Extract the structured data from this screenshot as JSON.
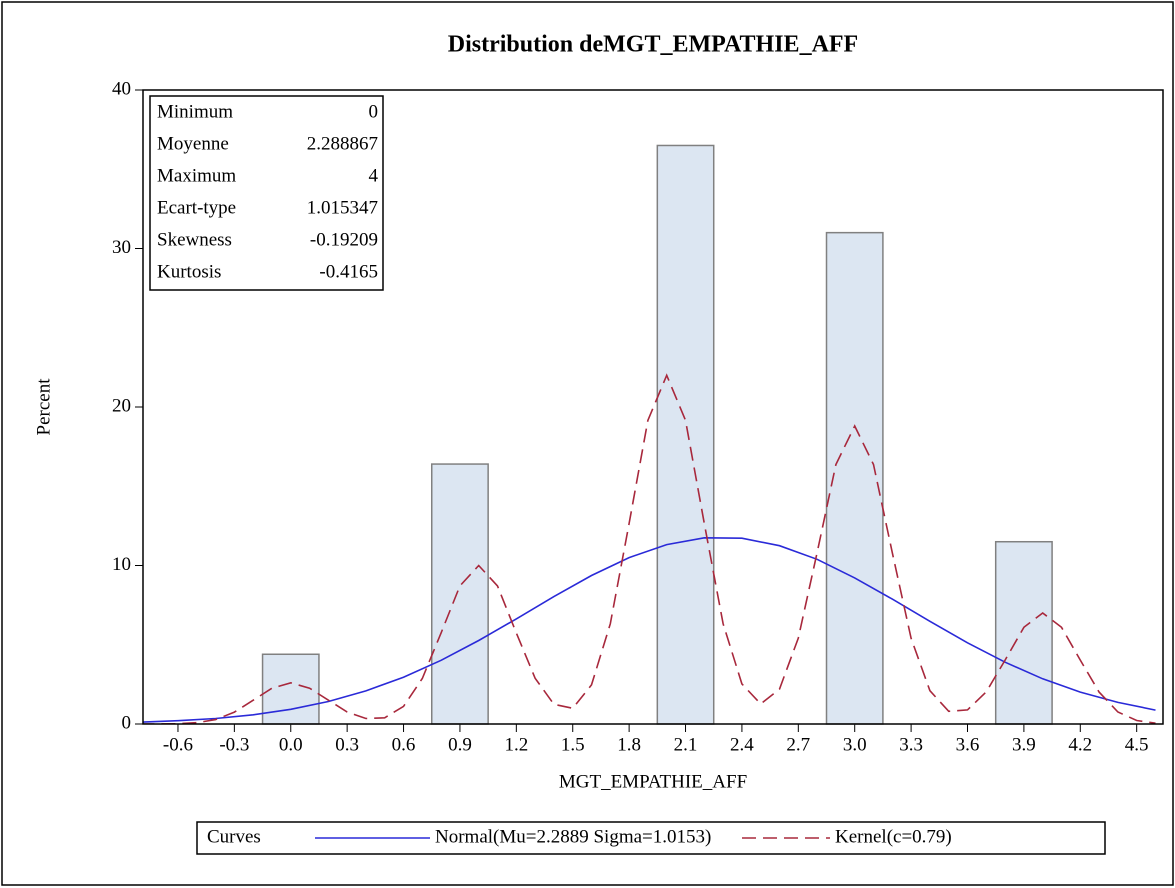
{
  "chart_data": {
    "type": "histogram",
    "title": "Distribution deMGT_EMPATHIE_AFF",
    "x_label": "MGT_EMPATHIE_AFF",
    "y_label": "Percent",
    "bins": [
      -0.15,
      0.15,
      0.45,
      0.75,
      1.05,
      1.35,
      1.65,
      1.95,
      2.25,
      2.55,
      2.85,
      3.15,
      3.45,
      3.75,
      4.05
    ],
    "values": [
      4.4,
      0,
      0,
      16.4,
      0,
      0,
      0,
      36.5,
      0,
      0,
      31.0,
      0,
      0,
      11.5
    ],
    "color": "#dce6f2",
    "edge_color": "#808080",
    "xlim": [
      -0.786,
      4.64
    ],
    "ylim": [
      0,
      40
    ],
    "xticks": [
      -0.6,
      -0.3,
      {
        "value": 0,
        "label": "0.0"
      },
      0.3,
      0.6,
      0.9,
      1.2,
      1.5,
      1.8,
      2.1,
      2.4,
      2.7,
      {
        "value": 3,
        "label": "3.0"
      },
      3.3,
      3.6,
      3.9,
      4.2,
      4.5
    ],
    "yticks": [
      0,
      10,
      20,
      30,
      40
    ],
    "stats": [
      {
        "label": "Minimum",
        "value": 0
      },
      {
        "label": "Moyenne",
        "value": 2.288867
      },
      {
        "label": "Maximum",
        "value": 4
      },
      {
        "label": "Ecart-type",
        "value": 1.015347
      },
      {
        "label": "Skewness",
        "value": -0.19209
      },
      {
        "label": "Kurtosis",
        "value": -0.4165
      }
    ],
    "legend_title": "Curves",
    "curves": [
      {
        "name": "Normal(Mu=2.2889 Sigma=1.0153)",
        "color": "#2a2ad8",
        "dashed": false,
        "x": [
          -0.8,
          -0.6,
          -0.4,
          -0.2,
          0,
          0.2,
          0.4,
          0.6,
          0.8,
          1.0,
          1.2,
          1.4,
          1.6,
          1.8,
          2.0,
          2.2,
          2.4,
          2.6,
          2.8,
          3.0,
          3.2,
          3.4,
          3.6,
          3.8,
          4.0,
          4.2,
          4.4,
          4.6
        ],
        "values": [
          0.115,
          0.21,
          0.35,
          0.58,
          0.93,
          1.42,
          2.09,
          2.95,
          4.02,
          5.27,
          6.63,
          8.04,
          9.37,
          10.5,
          11.32,
          11.75,
          11.72,
          11.25,
          10.39,
          9.22,
          7.88,
          6.48,
          5.12,
          3.9,
          2.85,
          2.01,
          1.36,
          0.88
        ]
      },
      {
        "name": "Kernel(c=0.79)",
        "color": "#a8283c",
        "dashed": true,
        "x": [
          -0.8,
          -0.7,
          -0.6,
          -0.5,
          -0.4,
          -0.3,
          -0.2,
          -0.1,
          0,
          0.1,
          0.2,
          0.3,
          0.4,
          0.5,
          0.6,
          0.7,
          0.8,
          0.9,
          1.0,
          1.1,
          1.2,
          1.3,
          1.4,
          1.5,
          1.6,
          1.7,
          1.8,
          1.9,
          2.0,
          2.1,
          2.2,
          2.3,
          2.4,
          2.5,
          2.6,
          2.7,
          2.8,
          2.9,
          3.0,
          3.1,
          3.2,
          3.3,
          3.4,
          3.5,
          3.6,
          3.7,
          3.8,
          3.9,
          4.0,
          4.1,
          4.2,
          4.3,
          4.4,
          4.5,
          4.6
        ],
        "values": [
          0,
          0,
          0.02,
          0.08,
          0.28,
          0.75,
          1.5,
          2.26,
          2.6,
          2.26,
          1.5,
          0.76,
          0.35,
          0.39,
          1.11,
          2.87,
          5.75,
          8.71,
          10,
          8.71,
          5.75,
          2.89,
          1.24,
          0.99,
          2.47,
          6.32,
          12.65,
          19.16,
          22,
          19.16,
          12.65,
          6.33,
          2.53,
          1.26,
          2.2,
          5.42,
          10.81,
          16.37,
          18.8,
          16.37,
          10.81,
          5.41,
          2.1,
          0.8,
          0.89,
          2.03,
          4.03,
          6.1,
          7,
          6.1,
          4.03,
          2.01,
          0.76,
          0.22,
          0.05
        ]
      }
    ]
  }
}
